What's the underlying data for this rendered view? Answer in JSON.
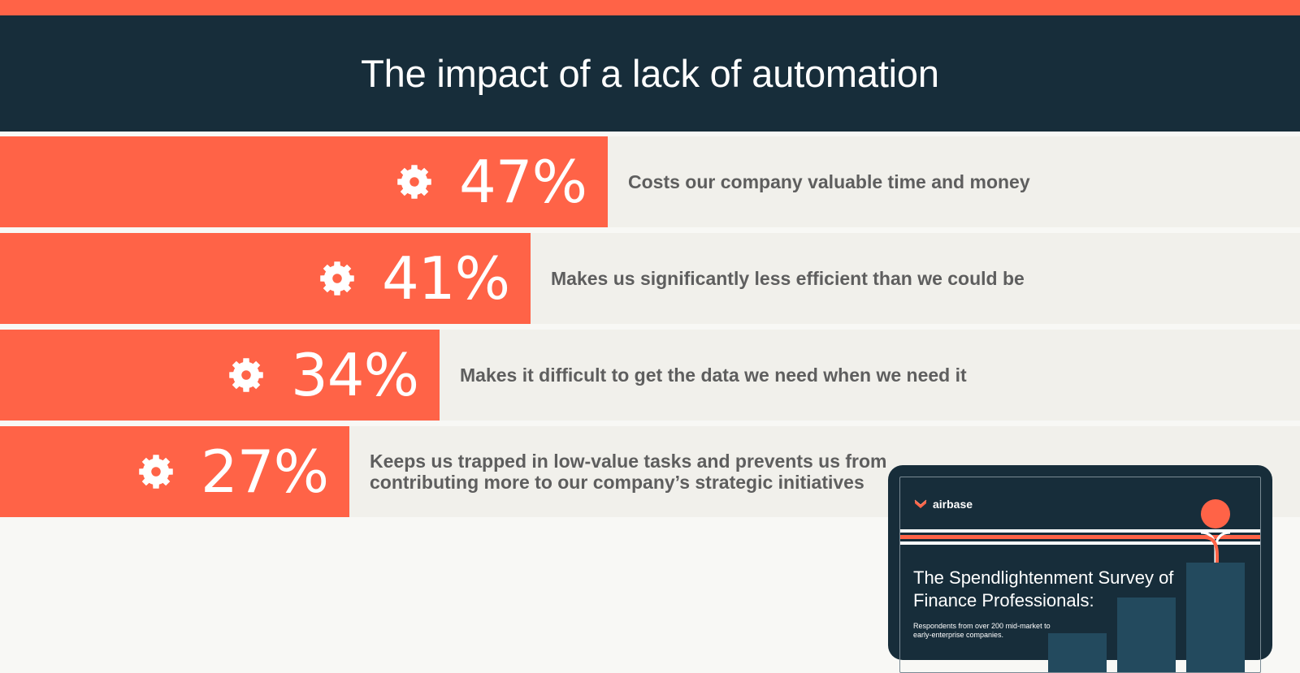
{
  "header": {
    "title": "The impact of a lack of automation"
  },
  "chart_data": {
    "type": "bar",
    "orientation": "horizontal",
    "title": "The impact of a lack of automation",
    "categories": [
      "Costs our company valuable time and money",
      "Makes us significantly less efficient than we could be",
      "Makes it difficult to get the data we need when we need it",
      "Keeps us trapped in low-value tasks and prevents us from\ncontributing more to our company’s strategic initiatives"
    ],
    "values": [
      47,
      41,
      34,
      27
    ],
    "value_labels": [
      "47%",
      "41%",
      "34%",
      "27%"
    ],
    "unit": "%",
    "bar_color": "#ff6347",
    "track_color": "#f1f0eb",
    "icon": "gear-icon"
  },
  "report_cover": {
    "brand": "airbase",
    "title": "The Spendlightenment Survey of\nFinance Professionals:",
    "subtitle": "Respondents from over 200 mid-market to early-enterprise companies.",
    "background_color": "#172d3a",
    "accent_color": "#ff6347"
  },
  "colors": {
    "accent": "#ff6347",
    "header_bg": "#172d3a",
    "page_bg": "#f8f8f5",
    "text_muted": "#5e5e5e"
  }
}
